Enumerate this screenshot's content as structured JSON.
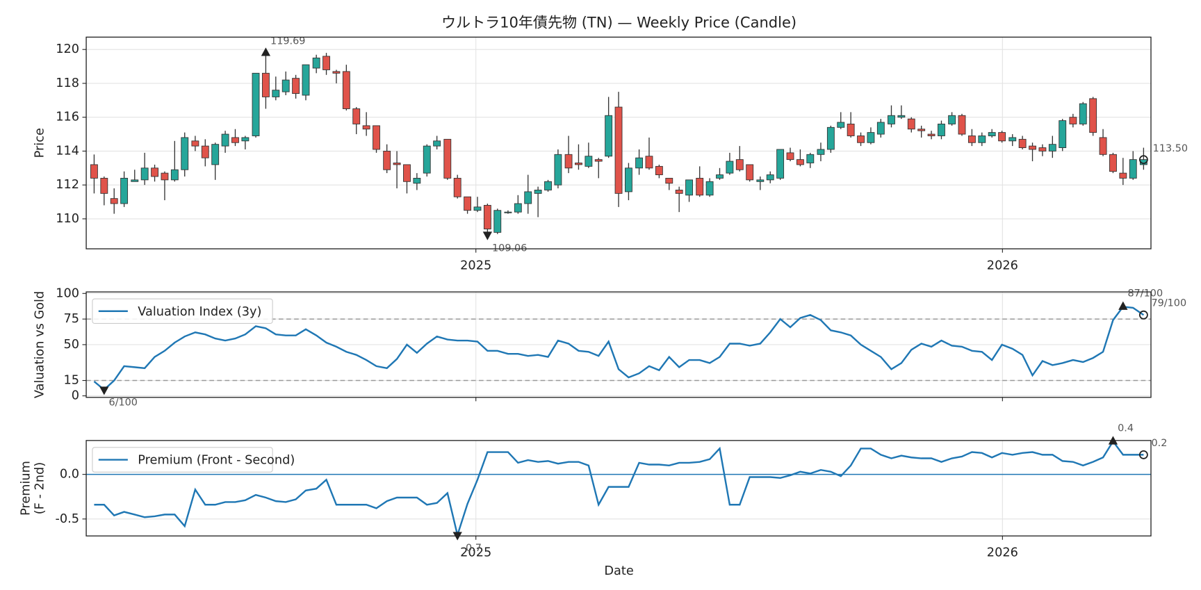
{
  "chart_data": [
    {
      "type": "candlestick",
      "title": "ウルトラ10年債先物 (TN) — Weekly Price (Candle)",
      "ylabel": [
        "Price"
      ],
      "x": [
        2024.275,
        2024.294,
        2024.313,
        2024.332,
        2024.352,
        2024.371,
        2024.39,
        2024.409,
        2024.428,
        2024.447,
        2024.467,
        2024.486,
        2024.505,
        2024.524,
        2024.543,
        2024.562,
        2024.582,
        2024.601,
        2024.62,
        2024.639,
        2024.658,
        2024.677,
        2024.697,
        2024.716,
        2024.735,
        2024.754,
        2024.773,
        2024.792,
        2024.811,
        2024.831,
        2024.85,
        2024.869,
        2024.888,
        2024.907,
        2024.926,
        2024.946,
        2024.965,
        2024.984,
        2025.003,
        2025.022,
        2025.041,
        2025.061,
        2025.08,
        2025.099,
        2025.118,
        2025.137,
        2025.156,
        2025.176,
        2025.195,
        2025.214,
        2025.233,
        2025.252,
        2025.271,
        2025.29,
        2025.31,
        2025.329,
        2025.348,
        2025.367,
        2025.386,
        2025.405,
        2025.425,
        2025.444,
        2025.463,
        2025.482,
        2025.501,
        2025.52,
        2025.54,
        2025.559,
        2025.578,
        2025.597,
        2025.616,
        2025.635,
        2025.655,
        2025.674,
        2025.693,
        2025.712,
        2025.731,
        2025.75,
        2025.769,
        2025.789,
        2025.808,
        2025.827,
        2025.846,
        2025.865,
        2025.884,
        2025.904,
        2025.923,
        2025.942,
        2025.961,
        2025.98,
        2025.999,
        2026.019,
        2026.038,
        2026.057,
        2026.076,
        2026.095,
        2026.114,
        2026.134,
        2026.153,
        2026.172,
        2026.191,
        2026.21,
        2026.229,
        2026.248,
        2026.268
      ],
      "open": [
        113.2,
        112.4,
        111.2,
        110.9,
        112.2,
        112.3,
        113.0,
        112.7,
        112.3,
        112.9,
        114.6,
        114.3,
        113.2,
        114.3,
        114.8,
        114.6,
        114.9,
        118.6,
        117.2,
        117.5,
        118.3,
        117.3,
        118.9,
        119.6,
        118.7,
        118.7,
        116.5,
        115.5,
        115.5,
        114.0,
        113.3,
        113.2,
        112.1,
        112.7,
        114.3,
        114.7,
        112.4,
        111.3,
        110.5,
        110.8,
        109.2,
        110.4,
        110.4,
        110.9,
        111.5,
        111.7,
        112.0,
        113.8,
        113.3,
        113.1,
        113.5,
        113.7,
        116.6,
        111.6,
        113.0,
        113.7,
        113.1,
        112.4,
        111.7,
        111.4,
        112.4,
        111.4,
        112.4,
        112.7,
        113.5,
        113.2,
        112.2,
        112.3,
        112.4,
        113.9,
        113.5,
        113.3,
        113.8,
        114.1,
        115.4,
        115.6,
        114.9,
        114.5,
        115.0,
        115.6,
        116.0,
        115.9,
        115.3,
        115.0,
        114.9,
        115.6,
        116.1,
        114.9,
        114.5,
        114.9,
        115.1,
        114.6,
        114.7,
        114.3,
        114.2,
        114.0,
        114.2,
        116.0,
        115.6,
        117.1,
        114.8,
        113.8,
        112.7,
        112.4,
        113.2
      ],
      "high": [
        113.8,
        112.5,
        111.8,
        112.8,
        112.9,
        113.9,
        113.2,
        112.8,
        114.6,
        115.1,
        114.9,
        114.7,
        114.5,
        115.2,
        115.3,
        114.9,
        118.6,
        119.8,
        118.4,
        118.7,
        118.5,
        119.1,
        119.69,
        119.8,
        118.8,
        119.1,
        116.6,
        116.3,
        115.5,
        114.4,
        114.0,
        113.2,
        112.7,
        114.4,
        114.9,
        114.7,
        112.6,
        111.3,
        111.3,
        110.9,
        110.6,
        110.5,
        111.4,
        112.6,
        111.9,
        112.3,
        114.1,
        114.9,
        114.4,
        114.5,
        113.6,
        117.2,
        117.5,
        113.3,
        114.1,
        114.8,
        113.2,
        112.4,
        111.9,
        112.3,
        113.1,
        112.4,
        113.0,
        113.9,
        114.3,
        113.2,
        112.5,
        112.8,
        114.1,
        114.2,
        114.1,
        113.9,
        114.5,
        115.5,
        116.3,
        116.3,
        115.1,
        115.4,
        115.9,
        116.7,
        116.7,
        116.0,
        115.5,
        115.2,
        115.8,
        116.3,
        116.2,
        115.3,
        115.1,
        115.3,
        115.2,
        115.0,
        114.9,
        114.5,
        114.4,
        114.9,
        115.9,
        116.2,
        116.9,
        117.2,
        115.3,
        113.9,
        113.6,
        114.0,
        114.2
      ],
      "low": [
        111.5,
        110.8,
        110.3,
        110.7,
        112.2,
        112.0,
        112.2,
        111.1,
        112.2,
        112.5,
        114.0,
        113.1,
        112.3,
        113.9,
        114.3,
        114.1,
        114.8,
        116.5,
        117.0,
        117.3,
        117.1,
        117.0,
        118.6,
        118.5,
        118.0,
        116.4,
        115.0,
        114.9,
        113.9,
        112.7,
        111.8,
        111.5,
        111.7,
        112.5,
        114.1,
        112.3,
        111.2,
        110.3,
        110.4,
        109.06,
        109.1,
        110.3,
        110.3,
        110.3,
        110.1,
        111.6,
        111.8,
        112.7,
        112.9,
        113.0,
        112.4,
        113.6,
        110.7,
        111.1,
        112.6,
        112.9,
        112.4,
        111.7,
        110.4,
        111.0,
        111.3,
        111.3,
        112.3,
        112.6,
        112.8,
        112.2,
        111.7,
        112.1,
        112.3,
        113.4,
        113.1,
        113.0,
        113.4,
        113.9,
        115.3,
        114.8,
        114.3,
        114.4,
        114.8,
        115.4,
        115.9,
        115.1,
        114.8,
        114.7,
        114.7,
        115.5,
        114.9,
        114.3,
        114.3,
        114.8,
        114.5,
        114.3,
        114.1,
        113.4,
        113.7,
        113.6,
        114.0,
        115.4,
        115.5,
        114.9,
        113.7,
        112.7,
        112.0,
        112.3,
        112.9
      ],
      "close": [
        112.4,
        111.5,
        110.9,
        112.4,
        112.3,
        113.0,
        112.5,
        112.3,
        112.9,
        114.8,
        114.3,
        113.6,
        114.4,
        115.0,
        114.5,
        114.8,
        118.6,
        117.2,
        117.6,
        118.2,
        117.4,
        119.1,
        119.5,
        118.8,
        118.6,
        116.5,
        115.6,
        115.3,
        114.1,
        112.9,
        113.2,
        112.2,
        112.4,
        114.3,
        114.6,
        112.4,
        111.3,
        110.5,
        110.7,
        109.4,
        110.5,
        110.4,
        110.9,
        111.6,
        111.7,
        112.2,
        113.8,
        113.0,
        113.2,
        113.7,
        113.4,
        116.1,
        111.5,
        113.0,
        113.6,
        113.0,
        112.6,
        112.1,
        111.5,
        112.3,
        111.4,
        112.2,
        112.6,
        113.4,
        112.9,
        112.3,
        112.3,
        112.6,
        114.1,
        113.5,
        113.2,
        113.8,
        114.1,
        115.4,
        115.7,
        114.9,
        114.5,
        115.1,
        115.7,
        116.1,
        116.1,
        115.3,
        115.2,
        114.9,
        115.6,
        116.1,
        115.0,
        114.5,
        114.9,
        115.1,
        114.6,
        114.8,
        114.2,
        114.1,
        114.0,
        114.4,
        115.8,
        115.6,
        116.8,
        115.1,
        113.8,
        112.8,
        112.4,
        113.5,
        113.5
      ],
      "up_color": "#26a69a",
      "down_color": "#e0534a",
      "xlim": [
        2024.26,
        2026.282
      ],
      "xticks": [
        2025,
        2026
      ],
      "ylim": [
        108.23,
        120.73
      ],
      "yticks": [
        110,
        112,
        114,
        116,
        118,
        120
      ],
      "grid": true,
      "annotations": {
        "max": "119.69",
        "min": "109.06",
        "last": "113.50"
      }
    },
    {
      "type": "line",
      "ylabel": [
        "Valuation vs Gold"
      ],
      "legend": "upper left",
      "series": [
        {
          "name": "Valuation Index (3y)",
          "color": "#1f77b4",
          "values": [
            14,
            6,
            15,
            29,
            28,
            27,
            38,
            44,
            52,
            58,
            62,
            60,
            56,
            54,
            56,
            60,
            68,
            66,
            60,
            59,
            59,
            65,
            59,
            52,
            48,
            43,
            40,
            35,
            29,
            27,
            36,
            50,
            42,
            51,
            58,
            55,
            54,
            54,
            53,
            44,
            44,
            41,
            41,
            39,
            40,
            38,
            54,
            51,
            44,
            43,
            39,
            53,
            26,
            18,
            22,
            29,
            25,
            38,
            28,
            35,
            35,
            32,
            38,
            51,
            51,
            49,
            51,
            62,
            75,
            67,
            76,
            79,
            74,
            64,
            62,
            59,
            50,
            44,
            38,
            26,
            32,
            45,
            51,
            48,
            54,
            49,
            48,
            44,
            43,
            35,
            50,
            46,
            40,
            20,
            34,
            30,
            32,
            35,
            33,
            37,
            43,
            74,
            87,
            86,
            79
          ]
        }
      ],
      "ylim": [
        -1.5,
        101.5
      ],
      "yticks": [
        0,
        15,
        50,
        75,
        100
      ],
      "grid": true,
      "hlines": [
        75,
        15
      ],
      "hline_style": "dashed",
      "hline_color": "#999999",
      "annotations": {
        "max": "87/100",
        "min": "6/100",
        "last": "79/100"
      }
    },
    {
      "type": "line",
      "ylabel": [
        "Premium",
        "(F - 2nd)"
      ],
      "xlabel": "Date",
      "legend": "upper left",
      "series": [
        {
          "name": "Premium (Front - Second)",
          "color": "#1f77b4",
          "values": [
            -0.34,
            -0.34,
            -0.46,
            -0.42,
            -0.45,
            -0.48,
            -0.47,
            -0.45,
            -0.45,
            -0.58,
            -0.17,
            -0.34,
            -0.34,
            -0.31,
            -0.31,
            -0.29,
            -0.23,
            -0.26,
            -0.3,
            -0.31,
            -0.28,
            -0.18,
            -0.16,
            -0.06,
            -0.34,
            -0.34,
            -0.34,
            -0.34,
            -0.38,
            -0.3,
            -0.26,
            -0.26,
            -0.26,
            -0.34,
            -0.32,
            -0.21,
            -0.68,
            -0.33,
            -0.06,
            0.25,
            0.25,
            0.25,
            0.13,
            0.16,
            0.14,
            0.15,
            0.12,
            0.14,
            0.14,
            0.1,
            -0.34,
            -0.14,
            -0.14,
            -0.14,
            0.13,
            0.11,
            0.11,
            0.1,
            0.13,
            0.13,
            0.14,
            0.17,
            0.29,
            -0.34,
            -0.34,
            -0.03,
            -0.03,
            -0.03,
            -0.04,
            -0.01,
            0.03,
            0.01,
            0.05,
            0.03,
            -0.02,
            0.1,
            0.29,
            0.29,
            0.22,
            0.18,
            0.21,
            0.19,
            0.18,
            0.18,
            0.14,
            0.18,
            0.2,
            0.25,
            0.24,
            0.19,
            0.24,
            0.22,
            0.24,
            0.25,
            0.22,
            0.22,
            0.15,
            0.14,
            0.1,
            0.14,
            0.19,
            0.37,
            0.22,
            0.22,
            0.22
          ]
        }
      ],
      "xticks": [
        2025,
        2026
      ],
      "ylim": [
        -0.69,
        0.38
      ],
      "yticks": [
        -0.5,
        {
          "value": 0,
          "label": "0.0"
        }
      ],
      "grid": true,
      "hlines": [
        0
      ],
      "hline_style": "solid",
      "hline_color": "#1f77b4",
      "annotations": {
        "max": "0.4",
        "min": "-0.7",
        "last": "0.2"
      }
    }
  ]
}
